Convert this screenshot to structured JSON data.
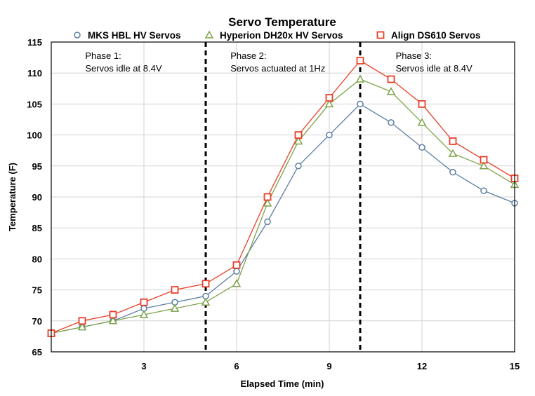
{
  "chart_data": {
    "type": "line",
    "title": "Servo Temperature",
    "xlabel": "Elapsed Time (min)",
    "ylabel": "Temperature (F)",
    "xlim": [
      0,
      15
    ],
    "ylim": [
      65,
      115
    ],
    "xticks": [
      3,
      6,
      9,
      12,
      15
    ],
    "yticks": [
      65,
      70,
      75,
      80,
      85,
      90,
      95,
      100,
      105,
      110,
      115
    ],
    "grid": true,
    "legend": "top",
    "x": [
      0,
      1,
      2,
      3,
      4,
      5,
      6,
      7,
      8,
      9,
      10,
      11,
      12,
      13,
      14,
      15
    ],
    "series": [
      {
        "name": "MKS HBL HV Servos",
        "color": "#5b7ea3",
        "marker": "circle",
        "values": [
          68,
          69,
          70,
          72,
          73,
          74,
          78,
          86,
          95,
          100,
          105,
          102,
          98,
          94,
          91,
          89
        ]
      },
      {
        "name": "Hyperion DH20x HV Servos",
        "color": "#7ea34a",
        "marker": "triangle",
        "values": [
          68,
          69,
          70,
          71,
          72,
          73,
          76,
          89,
          99,
          105,
          109,
          107,
          102,
          97,
          95,
          92
        ]
      },
      {
        "name": "Align DS610 Servos",
        "color": "#e8402a",
        "marker": "square",
        "values": [
          68,
          70,
          71,
          73,
          75,
          76,
          79,
          90,
          100,
          106,
          112,
          109,
          105,
          99,
          96,
          93
        ]
      }
    ],
    "phase_dividers": [
      5,
      10
    ],
    "annotations": [
      {
        "x": 1.1,
        "lines": [
          "Phase 1:",
          "Servos idle at 8.4V"
        ]
      },
      {
        "x": 5.8,
        "lines": [
          "Phase 2:",
          "Servos actuated at 1Hz"
        ]
      },
      {
        "x": 11.15,
        "lines": [
          "Phase 3:",
          "Servos idle at 8.4V"
        ]
      }
    ]
  }
}
